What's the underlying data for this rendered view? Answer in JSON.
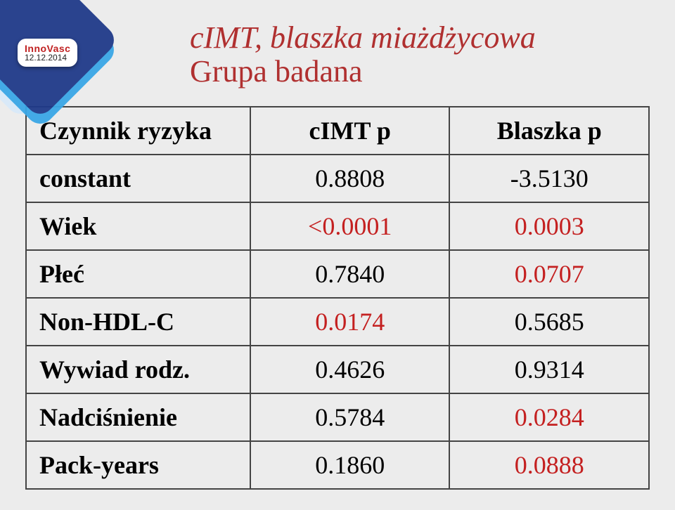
{
  "logo": {
    "brand": "InnoVasc",
    "date": "12.12.2014"
  },
  "title": {
    "main": "cIMT, blaszka miażdżycowa",
    "sub": "Grupa badana"
  },
  "table": {
    "header": {
      "col1": "Czynnik ryzyka",
      "col2": "cIMT  p",
      "col3": "Blaszka  p"
    },
    "rows": [
      {
        "label": "constant",
        "cimt": "0.8808",
        "cimt_red": false,
        "blaszka": "-3.5130",
        "blaszka_red": false
      },
      {
        "label": "Wiek",
        "cimt": "<0.0001",
        "cimt_red": true,
        "blaszka": "0.0003",
        "blaszka_red": true
      },
      {
        "label": "Płeć",
        "cimt": "0.7840",
        "cimt_red": false,
        "blaszka": "0.0707",
        "blaszka_red": true
      },
      {
        "label": "Non-HDL-C",
        "cimt": "0.0174",
        "cimt_red": true,
        "blaszka": "0.5685",
        "blaszka_red": false
      },
      {
        "label": "Wywiad rodz.",
        "cimt": "0.4626",
        "cimt_red": false,
        "blaszka": "0.9314",
        "blaszka_red": false
      },
      {
        "label": "Nadciśnienie",
        "cimt": "0.5784",
        "cimt_red": false,
        "blaszka": "0.0284",
        "blaszka_red": true
      },
      {
        "label": "Pack-years",
        "cimt": "0.1860",
        "cimt_red": false,
        "blaszka": "0.0888",
        "blaszka_red": true
      }
    ]
  },
  "colors": {
    "highlight": "#c42020",
    "title": "#b03030",
    "border": "#444444",
    "background": "#ececec"
  }
}
